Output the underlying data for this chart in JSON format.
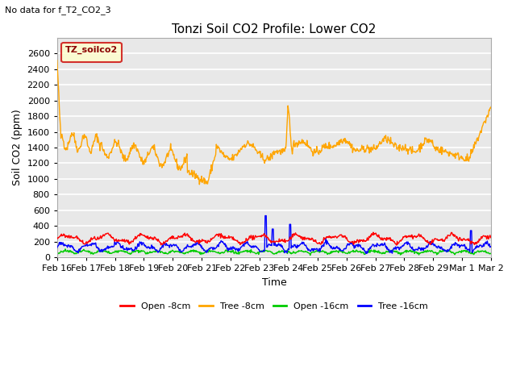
{
  "title": "Tonzi Soil CO2 Profile: Lower CO2",
  "suptitle": "No data for f_T2_CO2_3",
  "xlabel": "Time",
  "ylabel": "Soil CO2 (ppm)",
  "ylim": [
    0,
    2800
  ],
  "yticks": [
    0,
    200,
    400,
    600,
    800,
    1000,
    1200,
    1400,
    1600,
    1800,
    2000,
    2200,
    2400,
    2600
  ],
  "xtick_labels": [
    "Feb 16",
    "Feb 17",
    "Feb 18",
    "Feb 19",
    "Feb 20",
    "Feb 21",
    "Feb 22",
    "Feb 23",
    "Feb 24",
    "Feb 25",
    "Feb 26",
    "Feb 27",
    "Feb 28",
    "Feb 29",
    "Mar 1",
    "Mar 2"
  ],
  "legend_label": "TZ_soilco2",
  "legend_entries": [
    "Open -8cm",
    "Tree -8cm",
    "Open -16cm",
    "Tree -16cm"
  ],
  "legend_colors": [
    "#ff0000",
    "#ffa500",
    "#00cc00",
    "#0000ff"
  ],
  "fig_bg": "#ffffff",
  "plot_bg": "#e8e8e8",
  "grid_color": "#ffffff",
  "line_width": 1.0,
  "num_points": 800,
  "title_fontsize": 11,
  "tick_fontsize": 8,
  "label_fontsize": 9
}
